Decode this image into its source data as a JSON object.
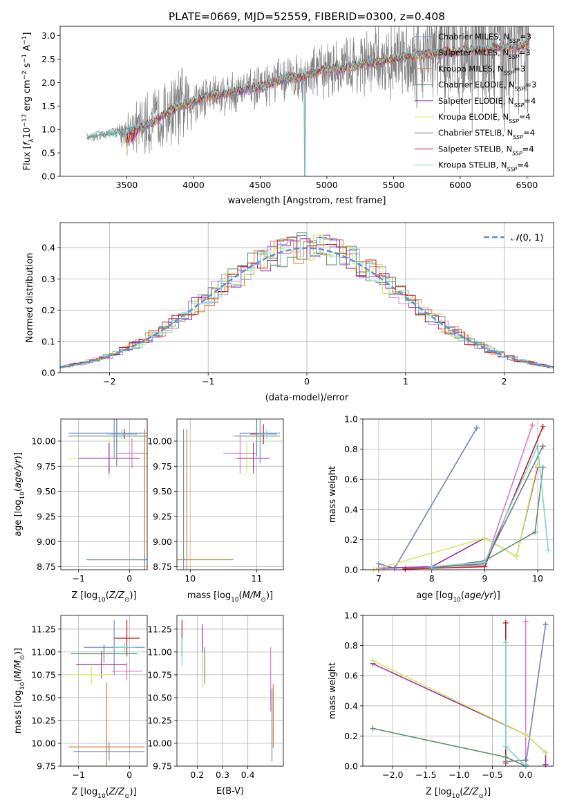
{
  "figure": {
    "title": "PLATE=0669, MJD=52559, FIBERID=0300, z=0.408"
  },
  "colors": {
    "series": [
      "#6f8fd0",
      "#e377c2",
      "#e07a2c",
      "#5a8f6a",
      "#9a2db0",
      "#d4ea5c",
      "#777777",
      "#b51b1b",
      "#7ad3d8"
    ],
    "observed": "#808080",
    "normal_fit": "#5b8fd6"
  },
  "chart_data": [
    {
      "id": "spectrum",
      "type": "line",
      "xlabel": "wavelength [Angstrom, rest frame]",
      "ylabel": "Flux [f_λ 10⁻¹⁷ erg cm⁻² s⁻¹ A⁻¹]",
      "xlim": [
        3000,
        6700
      ],
      "ylim": [
        0,
        3.2
      ],
      "xticks": [
        3500,
        4000,
        4500,
        5000,
        5500,
        6000,
        6500
      ],
      "yticks": [
        0.0,
        0.5,
        1.0,
        1.5,
        2.0,
        2.5,
        3.0
      ],
      "grid": false,
      "legend_position": "top-right",
      "observed": {
        "x": [
          3200,
          3300,
          3400,
          3500,
          3600,
          3700,
          3800,
          3900,
          4000,
          4100,
          4200,
          4300,
          4400,
          4500,
          4600,
          4700,
          4800,
          4900,
          5000,
          5100,
          5200,
          5300,
          5400,
          5500,
          5600,
          5700,
          5800,
          5900,
          6000,
          6100,
          6200,
          6300,
          6400,
          6500
        ],
        "y": [
          0.82,
          0.88,
          0.92,
          0.95,
          1.05,
          1.15,
          1.35,
          1.5,
          1.6,
          1.7,
          1.75,
          1.8,
          1.85,
          1.9,
          2.0,
          2.1,
          2.1,
          2.2,
          2.3,
          2.3,
          2.35,
          2.4,
          2.45,
          2.5,
          2.55,
          2.6,
          2.6,
          2.65,
          2.65,
          2.7,
          2.7,
          2.75,
          2.75,
          2.8
        ],
        "noise": [
          0.03,
          0.03,
          0.04,
          0.4,
          0.5,
          0.6,
          0.6,
          0.7,
          0.5,
          0.4,
          0.4,
          0.4,
          0.35,
          0.35,
          0.4,
          0.4,
          0.4,
          0.5,
          0.5,
          0.5,
          0.6,
          0.6,
          0.6,
          0.7,
          0.8,
          0.9,
          1.0,
          1.1,
          1.2,
          1.3,
          1.4,
          1.5,
          1.6,
          1.7
        ]
      },
      "series": [
        {
          "name": "Chabrier MILES, N_SSP=3",
          "label_base": "Chabrier MILES, N",
          "label_sub": "SSP",
          "label_tail": "=3"
        },
        {
          "name": "Salpeter MILES, N_SSP=3",
          "label_base": "Salpeter MILES, N",
          "label_sub": "SSP",
          "label_tail": "=3"
        },
        {
          "name": "Kroupa MILES, N_SSP=3",
          "label_base": "Kroupa MILES, N",
          "label_sub": "SSP",
          "label_tail": "=3"
        },
        {
          "name": "Chabrier ELODIE, N_SSP=3",
          "label_base": "Chabrier ELODIE, N",
          "label_sub": "SSP",
          "label_tail": "=3"
        },
        {
          "name": "Salpeter ELODIE, N_SSP=4",
          "label_base": "Salpeter ELODIE, N",
          "label_sub": "SSP",
          "label_tail": "=4"
        },
        {
          "name": "Kroupa ELODIE, N_SSP=4",
          "label_base": "Kroupa ELODIE, N",
          "label_sub": "SSP",
          "label_tail": "=4"
        },
        {
          "name": "Chabrier STELIB, N_SSP=4",
          "label_base": "Chabrier STELIB, N",
          "label_sub": "SSP",
          "label_tail": "=4"
        },
        {
          "name": "Salpeter STELIB, N_SSP=4",
          "label_base": "Salpeter STELIB, N",
          "label_sub": "SSP",
          "label_tail": "=4"
        },
        {
          "name": "Kroupa STELIB, N_SSP=4",
          "label_base": "Kroupa STELIB, N",
          "label_sub": "SSP",
          "label_tail": "=4"
        }
      ]
    },
    {
      "id": "residuals",
      "type": "histogram",
      "xlabel": "(data-model)/error",
      "ylabel": "Normed distribution",
      "xlim": [
        -2.5,
        2.5
      ],
      "ylim": [
        0,
        0.48
      ],
      "xticks": [
        -2,
        -1,
        0,
        1,
        2
      ],
      "yticks": [
        0.0,
        0.1,
        0.2,
        0.3,
        0.4
      ],
      "grid": true,
      "legend_position": "top-right",
      "legend_label": "N(0,1)",
      "bin_width": 0.1
    },
    {
      "id": "age-vs-Z",
      "type": "errorbar",
      "xlabel": "Z [log10(Z/Z☉)]",
      "ylabel": "age [log10(age/yr)]",
      "xlim": [
        -1.35,
        0.35
      ],
      "ylim": [
        8.72,
        10.22
      ],
      "xticks": [
        -1,
        0
      ],
      "yticks": [
        8.75,
        9.0,
        9.25,
        9.5,
        9.75,
        10.0
      ],
      "grid": true,
      "points": [
        {
          "c": 0,
          "x": -0.3,
          "y": 10.08,
          "xe": 0.9,
          "ye": 0.25
        },
        {
          "c": 3,
          "x": -0.25,
          "y": 10.05,
          "xe": 0.95,
          "ye": 0.3
        },
        {
          "c": 7,
          "x": -0.1,
          "y": 10.07,
          "xe": 0.25,
          "ye": 0.05
        },
        {
          "c": 5,
          "x": -0.4,
          "y": 9.83,
          "xe": 0.8,
          "ye": 0.2
        },
        {
          "c": 8,
          "x": -0.15,
          "y": 10.07,
          "xe": 0.3,
          "ye": 0.05
        },
        {
          "c": 1,
          "x": 0.05,
          "y": 9.88,
          "xe": 0.3,
          "ye": 0.15
        },
        {
          "c": 4,
          "x": -0.4,
          "y": 9.83,
          "xe": 0.6,
          "ye": 0.15
        },
        {
          "c": 2,
          "x": 0.3,
          "y": 8.82,
          "xe": 1.1,
          "ye": 1.3
        },
        {
          "c": 0,
          "x": 0.3,
          "y": 8.82,
          "xe": 1.15,
          "ye": 0.05
        }
      ]
    },
    {
      "id": "age-vs-mass",
      "type": "errorbar",
      "xlabel": "mass [log10(M/M☉)]",
      "ylabel": "",
      "xlim": [
        9.8,
        11.4
      ],
      "ylim": [
        8.72,
        10.22
      ],
      "xticks": [
        10,
        11
      ],
      "yticks": [
        8.75,
        9.0,
        9.25,
        9.5,
        9.75,
        10.0
      ],
      "grid": true,
      "points": [
        {
          "c": 0,
          "x": 11.05,
          "y": 10.08,
          "xe": 0.3,
          "ye": 0.3
        },
        {
          "c": 3,
          "x": 11.0,
          "y": 10.05,
          "xe": 0.35,
          "ye": 0.2
        },
        {
          "c": 7,
          "x": 11.1,
          "y": 10.07,
          "xe": 0.2,
          "ye": 0.1
        },
        {
          "c": 5,
          "x": 10.85,
          "y": 9.83,
          "xe": 0.2,
          "ye": 0.15
        },
        {
          "c": 8,
          "x": 11.15,
          "y": 10.07,
          "xe": 0.15,
          "ye": 0.05
        },
        {
          "c": 1,
          "x": 10.75,
          "y": 9.88,
          "xe": 0.25,
          "ye": 0.2
        },
        {
          "c": 4,
          "x": 10.95,
          "y": 9.83,
          "xe": 0.25,
          "ye": 0.15
        },
        {
          "c": 2,
          "x": 9.95,
          "y": 8.82,
          "xe": 0.7,
          "ye": 1.3
        },
        {
          "c": 0,
          "x": 9.9,
          "y": 8.82,
          "xe": 0.05,
          "ye": 1.3
        }
      ]
    },
    {
      "id": "massweight-vs-age",
      "type": "line",
      "xlabel": "age [log10(age/yr)]",
      "ylabel": "mass weight",
      "xlim": [
        6.7,
        10.3
      ],
      "ylim": [
        0,
        1.0
      ],
      "xticks": [
        7,
        8,
        9,
        10
      ],
      "yticks": [
        0.0,
        0.2,
        0.4,
        0.6,
        0.8,
        1.0
      ],
      "grid": true,
      "series": [
        {
          "c": 2,
          "x": [
            7.0,
            7.3,
            8.85
          ],
          "y": [
            0.04,
            0.01,
            0.94
          ]
        },
        {
          "c": 0,
          "x": [
            7.0,
            7.3,
            8.85
          ],
          "y": [
            0.04,
            0.01,
            0.94
          ]
        },
        {
          "c": 1,
          "x": [
            7.1,
            8.0,
            9.0,
            9.9
          ],
          "y": [
            0.01,
            0.02,
            0.03,
            0.96
          ]
        },
        {
          "c": 7,
          "x": [
            7.5,
            8.0,
            9.0,
            10.1
          ],
          "y": [
            0.005,
            0.01,
            0.02,
            0.95
          ]
        },
        {
          "c": 4,
          "x": [
            7.0,
            8.0,
            9.0,
            9.6,
            10.0
          ],
          "y": [
            0.01,
            0.02,
            0.21,
            0.09,
            0.68
          ]
        },
        {
          "c": 5,
          "x": [
            6.9,
            9.0,
            9.6,
            10.0
          ],
          "y": [
            0.0,
            0.21,
            0.09,
            0.7
          ]
        },
        {
          "c": 3,
          "x": [
            8.0,
            9.0,
            9.95,
            10.1
          ],
          "y": [
            0.01,
            0.06,
            0.25,
            0.68
          ]
        },
        {
          "c": 6,
          "x": [
            8.0,
            9.0,
            10.1
          ],
          "y": [
            0.015,
            0.04,
            0.82
          ]
        },
        {
          "c": 8,
          "x": [
            8.0,
            9.0,
            10.0,
            10.2
          ],
          "y": [
            0.02,
            0.05,
            0.82,
            0.13
          ]
        }
      ]
    },
    {
      "id": "mass-vs-Z",
      "type": "errorbar",
      "xlabel": "Z [log10(Z/Z☉)]",
      "ylabel": "mass [log10(M/M☉)]",
      "xlim": [
        -1.35,
        0.35
      ],
      "ylim": [
        9.75,
        11.4
      ],
      "xticks": [
        -1,
        0
      ],
      "yticks": [
        9.75,
        10.0,
        10.25,
        10.5,
        10.75,
        11.0,
        11.25
      ],
      "grid": true,
      "points": [
        {
          "c": 7,
          "x": -0.05,
          "y": 11.15,
          "xe": 0.25,
          "ye": 0.2
        },
        {
          "c": 0,
          "x": -0.3,
          "y": 11.05,
          "xe": 0.6,
          "ye": 0.3
        },
        {
          "c": 3,
          "x": -0.5,
          "y": 10.98,
          "xe": 0.65,
          "ye": 0.1
        },
        {
          "c": 8,
          "x": -0.1,
          "y": 11.05,
          "xe": 0.2,
          "ye": 0.05
        },
        {
          "c": 4,
          "x": -0.55,
          "y": 10.86,
          "xe": 0.5,
          "ye": 0.15
        },
        {
          "c": 5,
          "x": -0.75,
          "y": 10.75,
          "xe": 0.4,
          "ye": 0.1
        },
        {
          "c": 1,
          "x": -0.05,
          "y": 10.79,
          "xe": 0.3,
          "ye": 0.1
        },
        {
          "c": 2,
          "x": -0.45,
          "y": 9.96,
          "xe": 0.75,
          "ye": 0.7
        },
        {
          "c": 0,
          "x": -0.4,
          "y": 9.91,
          "xe": 0.7,
          "ye": 0.1
        }
      ]
    },
    {
      "id": "mass-vs-ebv",
      "type": "errorbar",
      "xlabel": "E(B-V)",
      "ylabel": "",
      "xlim": [
        0.12,
        0.54
      ],
      "ylim": [
        9.75,
        11.4
      ],
      "xticks": [
        0.2,
        0.3,
        0.4
      ],
      "yticks": [
        9.75,
        10.0,
        10.25,
        10.5,
        10.75,
        11.0,
        11.25
      ],
      "grid": true,
      "points": [
        {
          "c": 7,
          "x": 0.14,
          "y": 11.15,
          "xe": 0.0,
          "ye": 0.2
        },
        {
          "c": 8,
          "x": 0.14,
          "y": 11.0,
          "xe": 0.0,
          "ye": 0.15
        },
        {
          "c": 4,
          "x": 0.22,
          "y": 11.05,
          "xe": 0.0,
          "ye": 0.25
        },
        {
          "c": 5,
          "x": 0.22,
          "y": 10.8,
          "xe": 0.0,
          "ye": 0.2
        },
        {
          "c": 3,
          "x": 0.23,
          "y": 10.85,
          "xe": 0.0,
          "ye": 0.2
        },
        {
          "c": 1,
          "x": 0.49,
          "y": 10.7,
          "xe": 0.0,
          "ye": 0.35
        },
        {
          "c": 2,
          "x": 0.5,
          "y": 10.3,
          "xe": 0.0,
          "ye": 0.35
        },
        {
          "c": 0,
          "x": 0.495,
          "y": 10.2,
          "xe": 0.0,
          "ye": 0.4
        }
      ]
    },
    {
      "id": "massweight-vs-Z",
      "type": "line",
      "xlabel": "Z [log10(Z/Z☉)]",
      "ylabel": "mass weight",
      "xlim": [
        -2.45,
        0.42
      ],
      "ylim": [
        0,
        1.0
      ],
      "xticks": [
        -2.0,
        -1.5,
        -1.0,
        -0.5,
        0.0
      ],
      "yticks": [
        0.0,
        0.2,
        0.4,
        0.6,
        0.8,
        1.0
      ],
      "grid": true,
      "series": [
        {
          "c": 2,
          "x": [
            0.0,
            0.3
          ],
          "y": [
            0.01,
            0.94
          ]
        },
        {
          "c": 0,
          "x": [
            0.0,
            0.3
          ],
          "y": [
            0.01,
            0.94
          ]
        },
        {
          "c": 1,
          "x": [
            0.0,
            0.0
          ],
          "y": [
            0.01,
            0.96
          ]
        },
        {
          "c": 7,
          "x": [
            -0.3,
            -0.3
          ],
          "y": [
            0.02,
            0.95
          ]
        },
        {
          "c": 4,
          "x": [
            -2.3,
            0.0,
            0.3,
            0.3
          ],
          "y": [
            0.68,
            0.21,
            0.09,
            0.01
          ]
        },
        {
          "c": 5,
          "x": [
            -2.3,
            0.0,
            0.3
          ],
          "y": [
            0.7,
            0.21,
            0.09
          ]
        },
        {
          "c": 3,
          "x": [
            -2.3,
            -0.3,
            0.0
          ],
          "y": [
            0.25,
            0.06,
            0.0
          ]
        },
        {
          "c": 6,
          "x": [
            -0.3,
            0.0
          ],
          "y": [
            0.03,
            0.04
          ]
        },
        {
          "c": 8,
          "x": [
            -0.3,
            -0.3,
            0.0,
            0.0
          ],
          "y": [
            0.82,
            0.13,
            0.0,
            0.01
          ]
        }
      ]
    }
  ]
}
